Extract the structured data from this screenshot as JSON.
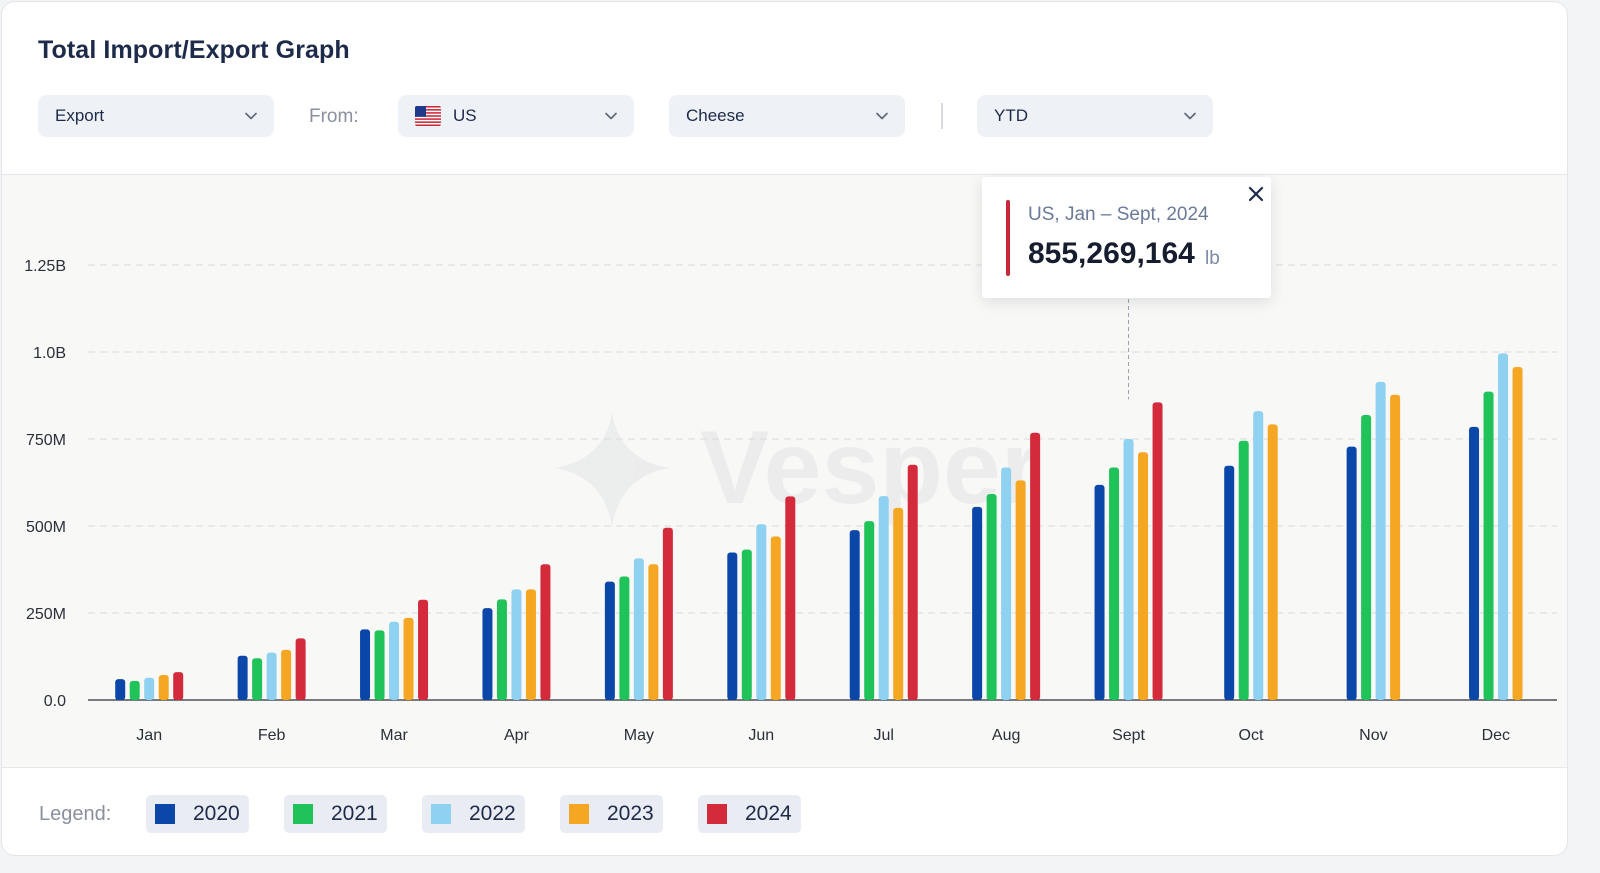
{
  "header": {
    "title": "Total Import/Export Graph"
  },
  "filters": {
    "direction": "Export",
    "from_label": "From:",
    "country": "US",
    "product": "Cheese",
    "period": "YTD"
  },
  "tooltip": {
    "subtitle": "US, Jan – Sept, 2024",
    "value": "855,269,164",
    "unit": "lb",
    "month": "Sept",
    "year": "2024"
  },
  "watermark": "Vesper",
  "legend": {
    "label": "Legend:"
  },
  "colors": {
    "2020": "#0b47a8",
    "2021": "#20c35a",
    "2022": "#8fd1f0",
    "2023": "#f5a623",
    "2024": "#d42b3c",
    "accent": "#c8283a"
  },
  "chart_data": {
    "type": "bar",
    "title": "Total Import/Export Graph",
    "categories": [
      "Jan",
      "Feb",
      "Mar",
      "Apr",
      "May",
      "Jun",
      "Jul",
      "Aug",
      "Sept",
      "Oct",
      "Nov",
      "Dec"
    ],
    "y_ticks": [
      0,
      250000000,
      500000000,
      750000000,
      1000000000,
      1250000000
    ],
    "y_tick_labels": [
      "0.0",
      "250M",
      "500M",
      "750M",
      "1.0B",
      "1.25B"
    ],
    "ylim": [
      0,
      1250000000
    ],
    "grid": true,
    "legend_position": "bottom-left",
    "series": [
      {
        "name": "2020",
        "values": [
          60000000,
          127000000,
          203000000,
          264000000,
          340000000,
          424000000,
          488000000,
          555000000,
          618000000,
          673000000,
          728000000,
          785000000
        ]
      },
      {
        "name": "2021",
        "values": [
          55000000,
          120000000,
          200000000,
          289000000,
          355000000,
          432000000,
          514000000,
          592000000,
          668000000,
          745000000,
          819000000,
          886000000
        ]
      },
      {
        "name": "2022",
        "values": [
          64000000,
          136000000,
          225000000,
          318000000,
          407000000,
          505000000,
          586000000,
          668000000,
          750000000,
          830000000,
          914000000,
          996000000
        ]
      },
      {
        "name": "2023",
        "values": [
          72000000,
          144000000,
          236000000,
          318000000,
          390000000,
          470000000,
          552000000,
          631000000,
          712000000,
          792000000,
          877000000,
          957000000
        ]
      },
      {
        "name": "2024",
        "values": [
          80000000,
          177000000,
          288000000,
          390000000,
          495000000,
          585000000,
          676000000,
          768000000,
          855269164,
          null,
          null,
          null
        ]
      }
    ]
  }
}
